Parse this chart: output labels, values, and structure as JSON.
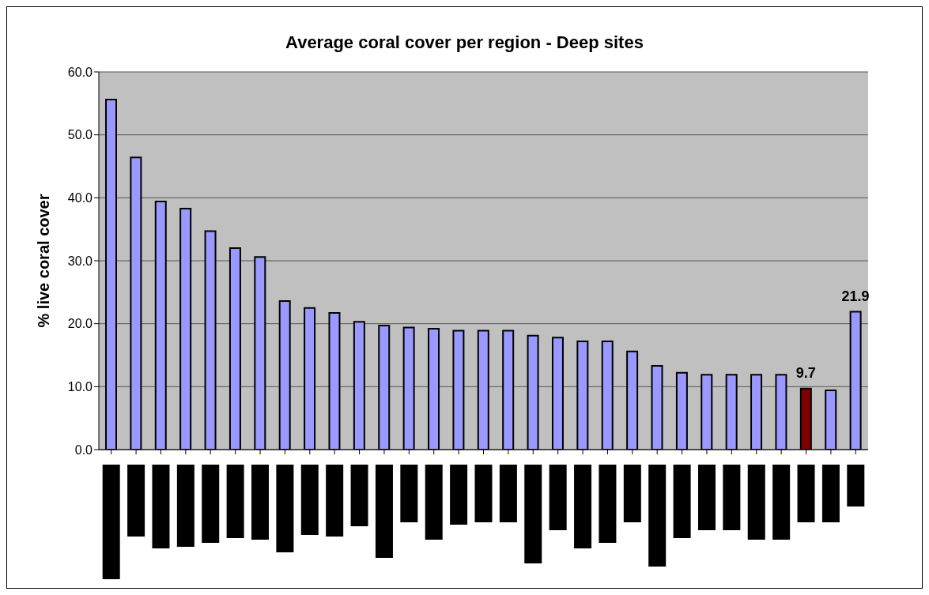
{
  "chart_data": {
    "type": "bar",
    "title": "Average coral cover per region - Deep sites",
    "ylabel": "% live coral cover",
    "categories": [
      null,
      null,
      null,
      null,
      null,
      null,
      null,
      null,
      null,
      null,
      null,
      null,
      null,
      null,
      null,
      null,
      null,
      null,
      null,
      null,
      null,
      null,
      null,
      null,
      null,
      null,
      null,
      null,
      null,
      null,
      null
    ],
    "values": [
      55.6,
      46.4,
      39.4,
      38.3,
      34.7,
      32.0,
      30.6,
      23.6,
      22.5,
      21.7,
      20.3,
      19.7,
      19.4,
      19.2,
      18.9,
      18.9,
      18.9,
      18.1,
      17.8,
      17.2,
      17.2,
      15.6,
      13.3,
      12.2,
      11.9,
      11.9,
      11.9,
      11.9,
      9.7,
      9.4,
      21.9
    ],
    "colors": [
      "#9999ff",
      "#9999ff",
      "#9999ff",
      "#9999ff",
      "#9999ff",
      "#9999ff",
      "#9999ff",
      "#9999ff",
      "#9999ff",
      "#9999ff",
      "#9999ff",
      "#9999ff",
      "#9999ff",
      "#9999ff",
      "#9999ff",
      "#9999ff",
      "#9999ff",
      "#9999ff",
      "#9999ff",
      "#9999ff",
      "#9999ff",
      "#9999ff",
      "#9999ff",
      "#9999ff",
      "#9999ff",
      "#9999ff",
      "#9999ff",
      "#9999ff",
      "#800000",
      "#9999ff",
      "#9999ff"
    ],
    "value_labels": [
      null,
      null,
      null,
      null,
      null,
      null,
      null,
      null,
      null,
      null,
      null,
      null,
      null,
      null,
      null,
      null,
      null,
      null,
      null,
      null,
      null,
      null,
      null,
      null,
      null,
      null,
      null,
      null,
      "9.7",
      null,
      "21.9"
    ],
    "ylim": [
      0,
      60
    ],
    "yticks": [
      {
        "value": 0,
        "label": "0.0"
      },
      {
        "value": 10,
        "label": "10.0"
      },
      {
        "value": 20,
        "label": "20.0"
      },
      {
        "value": 30,
        "label": "30.0"
      },
      {
        "value": 40,
        "label": "40.0"
      },
      {
        "value": 50,
        "label": "50.0"
      },
      {
        "value": 60,
        "label": "60.0"
      }
    ],
    "grid": "y"
  }
}
